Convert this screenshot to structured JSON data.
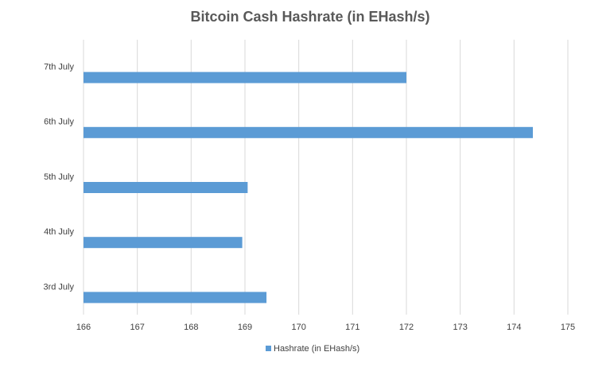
{
  "chart_data": {
    "type": "barh",
    "title": "Bitcoin Cash Hashrate (in EHash/s)",
    "categories": [
      "3rd July",
      "4th July",
      "5th July",
      "6th July",
      "7th July"
    ],
    "series": [
      {
        "name": "Hashrate (in EHash/s)",
        "color": "#5b9bd5",
        "values": [
          169.4,
          168.95,
          169.05,
          174.35,
          172.0
        ]
      }
    ],
    "xlim": [
      166,
      175
    ],
    "xticks": [
      166,
      167,
      168,
      169,
      170,
      171,
      172,
      173,
      174,
      175
    ],
    "grid": true,
    "legend": "bottom"
  }
}
